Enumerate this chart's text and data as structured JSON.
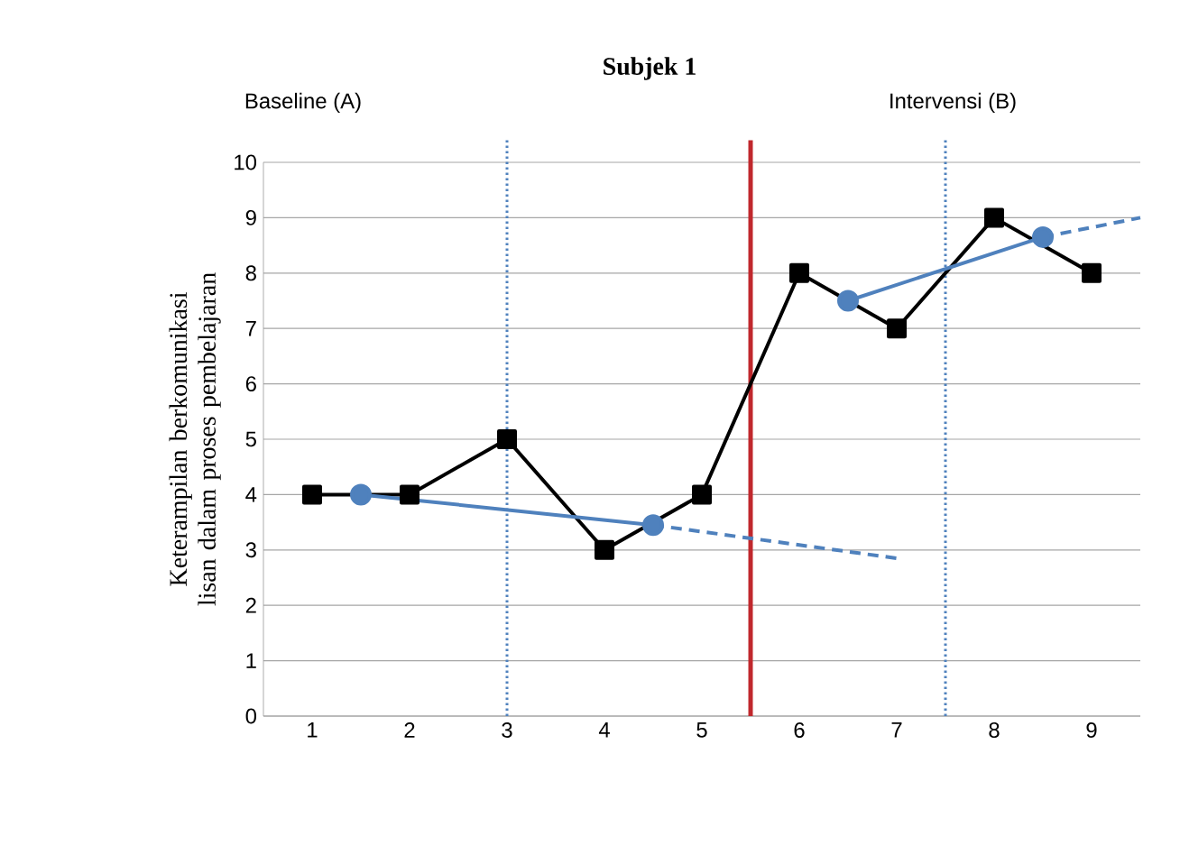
{
  "chart_data": {
    "type": "line",
    "title": "Subjek 1",
    "ylabel": "Keterampilan berkomunikasi lisan dalam proses pembelajaran",
    "annotations": [
      "Baseline (A)",
      "Intervensi (B)"
    ],
    "xlim": [
      0.5,
      9.5
    ],
    "xticks": [
      1,
      2,
      3,
      4,
      5,
      6,
      7,
      8,
      9
    ],
    "ylim": [
      0,
      10
    ],
    "yticks": [
      0,
      1,
      2,
      3,
      4,
      5,
      6,
      7,
      8,
      9,
      10
    ],
    "grid": "y",
    "series": [
      {
        "color": "#000000",
        "marker": "square",
        "line_style": "solid",
        "x": [
          1,
          2,
          3,
          4,
          5,
          6,
          7,
          8,
          9
        ],
        "values": [
          4,
          4,
          5,
          3,
          4,
          8,
          7,
          9,
          8
        ]
      },
      {
        "color": "#4f81bd",
        "marker": "circle",
        "line_style": "solid",
        "x": [
          1.5,
          4.5
        ],
        "values": [
          4,
          3.45
        ]
      },
      {
        "color": "#4f81bd",
        "marker": "none",
        "line_style": "dashed",
        "x": [
          4.5,
          7
        ],
        "values": [
          3.45,
          2.85
        ]
      },
      {
        "color": "#4f81bd",
        "marker": "circle",
        "line_style": "solid",
        "x": [
          6.5,
          8.5
        ],
        "values": [
          7.5,
          8.65
        ]
      },
      {
        "color": "#4f81bd",
        "marker": "none",
        "line_style": "dashed",
        "x": [
          8.5,
          9.5
        ],
        "values": [
          8.65,
          9.0
        ]
      }
    ],
    "ref_lines": [
      {
        "axis": "x",
        "value": 3,
        "color": "#4f81bd",
        "line_style": "dotted"
      },
      {
        "axis": "x",
        "value": 5.5,
        "color": "#c0282d",
        "line_style": "solid"
      },
      {
        "axis": "x",
        "value": 7.5,
        "color": "#4f81bd",
        "line_style": "dotted"
      }
    ]
  }
}
